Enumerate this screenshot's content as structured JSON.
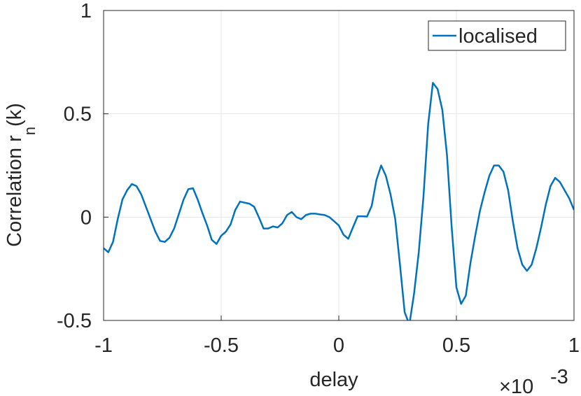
{
  "chart_data": {
    "type": "line",
    "xlabel": "delay",
    "x_exponent_base": "×10",
    "x_exponent": "-3",
    "ylabel": "Correlation r",
    "ylabel_subscript": "n",
    "ylabel_suffix": "(k)",
    "x": [
      -1,
      -0.98,
      -0.96,
      -0.94,
      -0.92,
      -0.9,
      -0.88,
      -0.86,
      -0.84,
      -0.82,
      -0.8,
      -0.78,
      -0.76,
      -0.74,
      -0.72,
      -0.7,
      -0.68,
      -0.66,
      -0.64,
      -0.62,
      -0.6,
      -0.58,
      -0.56,
      -0.54,
      -0.52,
      -0.5,
      -0.48,
      -0.46,
      -0.44,
      -0.42,
      -0.4,
      -0.38,
      -0.36,
      -0.34,
      -0.32,
      -0.3,
      -0.28,
      -0.26,
      -0.24,
      -0.22,
      -0.2,
      -0.18,
      -0.16,
      -0.14,
      -0.12,
      -0.1,
      -0.08,
      -0.06,
      -0.04,
      -0.02,
      0,
      0.02,
      0.04,
      0.06,
      0.08,
      0.1,
      0.12,
      0.14,
      0.16,
      0.18,
      0.2,
      0.22,
      0.24,
      0.26,
      0.28,
      0.3,
      0.32,
      0.34,
      0.36,
      0.38,
      0.4,
      0.42,
      0.44,
      0.46,
      0.48,
      0.5,
      0.52,
      0.54,
      0.56,
      0.58,
      0.6,
      0.62,
      0.64,
      0.66,
      0.68,
      0.7,
      0.72,
      0.74,
      0.76,
      0.78,
      0.8,
      0.82,
      0.84,
      0.86,
      0.88,
      0.9,
      0.92,
      0.94,
      0.96,
      0.98,
      1
    ],
    "series": [
      {
        "name": "localised",
        "color": "#0072bd",
        "values": [
          -0.15,
          -0.17,
          -0.12,
          -0.01,
          0.085,
          0.13,
          0.16,
          0.15,
          0.11,
          0.05,
          -0.01,
          -0.07,
          -0.115,
          -0.12,
          -0.1,
          -0.055,
          0.015,
          0.085,
          0.135,
          0.14,
          0.085,
          0.02,
          -0.04,
          -0.11,
          -0.13,
          -0.09,
          -0.07,
          -0.035,
          0.035,
          0.075,
          0.07,
          0.065,
          0.05,
          0,
          -0.055,
          -0.055,
          -0.045,
          -0.05,
          -0.03,
          0.01,
          0.025,
          0,
          -0.01,
          0.01,
          0.017,
          0.017,
          0.013,
          0.01,
          0,
          -0.02,
          -0.04,
          -0.085,
          -0.105,
          -0.05,
          0.004,
          0.004,
          0.003,
          0.055,
          0.18,
          0.25,
          0.2,
          0.11,
          -0.01,
          -0.23,
          -0.46,
          -0.52,
          -0.37,
          -0.17,
          0.1,
          0.45,
          0.65,
          0.62,
          0.52,
          0.3,
          -0.05,
          -0.34,
          -0.42,
          -0.38,
          -0.22,
          -0.09,
          0.03,
          0.12,
          0.2,
          0.25,
          0.25,
          0.22,
          0.13,
          -0.02,
          -0.15,
          -0.23,
          -0.26,
          -0.23,
          -0.15,
          -0.05,
          0.06,
          0.15,
          0.19,
          0.17,
          0.13,
          0.09,
          0.035
        ]
      }
    ],
    "xlim": [
      -1,
      1
    ],
    "xticks": [
      -1,
      -0.5,
      0,
      0.5,
      1
    ],
    "ylim": [
      -0.5,
      1
    ],
    "yticks": [
      -0.5,
      0,
      0.5,
      1
    ],
    "grid": true,
    "legend": "northeast"
  }
}
